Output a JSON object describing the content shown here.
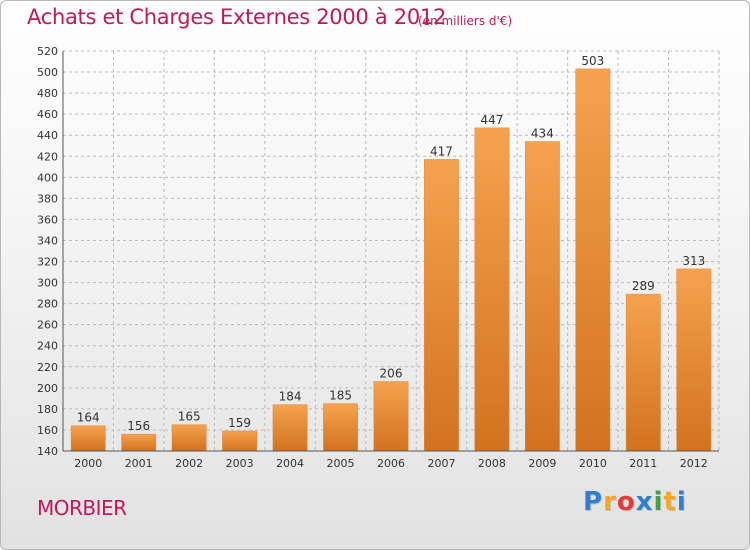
{
  "header": {
    "title": "Achats et Charges Externes 2000 à 2012",
    "unit": "(en milliers d'€)"
  },
  "footer": {
    "place": "MORBIER",
    "brand": "Proxiti",
    "brand_letters": [
      {
        "ch": "P",
        "color": "#2e7fd0"
      },
      {
        "ch": "r",
        "color": "#f5a623"
      },
      {
        "ch": "o",
        "color": "#e53935"
      },
      {
        "ch": "x",
        "color": "#2e7fd0"
      },
      {
        "ch": "i",
        "color": "#43a047"
      },
      {
        "ch": "t",
        "color": "#f5a623"
      },
      {
        "ch": "i",
        "color": "#2e7fd0"
      }
    ]
  },
  "colors": {
    "bar_top": "#f5a24e",
    "bar_bottom": "#d2721f",
    "title": "#c2185b",
    "text": "#333333",
    "grid": "#bbbbbb"
  },
  "chart_data": {
    "type": "bar",
    "categories": [
      "2000",
      "2001",
      "2002",
      "2003",
      "2004",
      "2005",
      "2006",
      "2007",
      "2008",
      "2009",
      "2010",
      "2011",
      "2012"
    ],
    "values": [
      164,
      156,
      165,
      159,
      184,
      185,
      206,
      417,
      447,
      434,
      503,
      289,
      313
    ],
    "title": "Achats et Charges Externes 2000 à 2012",
    "subtitle": "(en milliers d'€)",
    "xlabel": "",
    "ylabel": "",
    "ylim": [
      140,
      520
    ],
    "yticks": [
      140,
      160,
      180,
      200,
      220,
      240,
      260,
      280,
      300,
      320,
      340,
      360,
      380,
      400,
      420,
      440,
      460,
      480,
      500,
      520
    ],
    "grid": true,
    "data_labels": true
  }
}
